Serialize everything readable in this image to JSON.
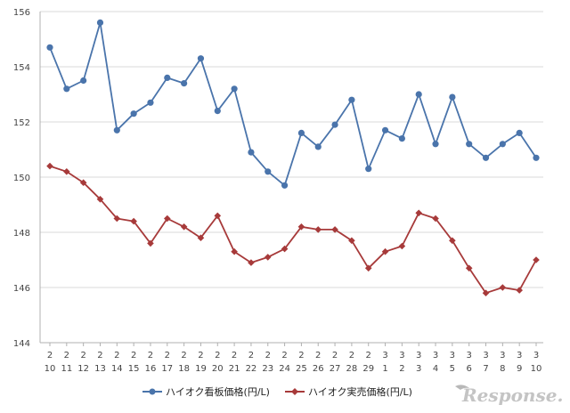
{
  "chart_data": {
    "type": "line",
    "title": "",
    "xlabel": "",
    "ylabel": "",
    "ylim": [
      144,
      156
    ],
    "yticks": [
      144,
      146,
      148,
      150,
      152,
      154,
      156
    ],
    "grid": true,
    "legend": "bottom",
    "categories": [
      [
        "2",
        "10"
      ],
      [
        "2",
        "11"
      ],
      [
        "2",
        "12"
      ],
      [
        "2",
        "13"
      ],
      [
        "2",
        "14"
      ],
      [
        "2",
        "15"
      ],
      [
        "2",
        "16"
      ],
      [
        "2",
        "17"
      ],
      [
        "2",
        "18"
      ],
      [
        "2",
        "19"
      ],
      [
        "2",
        "20"
      ],
      [
        "2",
        "21"
      ],
      [
        "2",
        "22"
      ],
      [
        "2",
        "23"
      ],
      [
        "2",
        "24"
      ],
      [
        "2",
        "25"
      ],
      [
        "2",
        "26"
      ],
      [
        "2",
        "27"
      ],
      [
        "2",
        "28"
      ],
      [
        "2",
        "29"
      ],
      [
        "3",
        "1"
      ],
      [
        "3",
        "2"
      ],
      [
        "3",
        "3"
      ],
      [
        "3",
        "4"
      ],
      [
        "3",
        "5"
      ],
      [
        "3",
        "6"
      ],
      [
        "3",
        "7"
      ],
      [
        "3",
        "8"
      ],
      [
        "3",
        "9"
      ],
      [
        "3",
        "10"
      ]
    ],
    "series": [
      {
        "name": "ハイオク看板価格(円/L)",
        "color": "#4a74ab",
        "marker": "circle",
        "values": [
          154.7,
          153.2,
          153.5,
          155.6,
          151.7,
          152.3,
          152.7,
          153.6,
          153.4,
          154.3,
          152.4,
          153.2,
          150.9,
          150.2,
          149.7,
          151.6,
          151.1,
          151.9,
          152.8,
          150.3,
          151.7,
          151.4,
          153.0,
          151.2,
          152.9,
          151.2,
          150.7,
          151.2,
          151.6,
          150.7
        ]
      },
      {
        "name": "ハイオク実売価格(円/L)",
        "color": "#a73a3a",
        "marker": "diamond",
        "values": [
          150.4,
          150.2,
          149.8,
          149.2,
          148.5,
          148.4,
          147.6,
          148.5,
          148.2,
          147.8,
          148.6,
          147.3,
          146.9,
          147.1,
          147.4,
          148.2,
          148.1,
          148.1,
          147.7,
          146.7,
          147.3,
          147.5,
          148.7,
          148.5,
          147.7,
          146.7,
          145.8,
          146.0,
          145.9,
          147.0
        ]
      }
    ]
  },
  "watermark": "Response."
}
